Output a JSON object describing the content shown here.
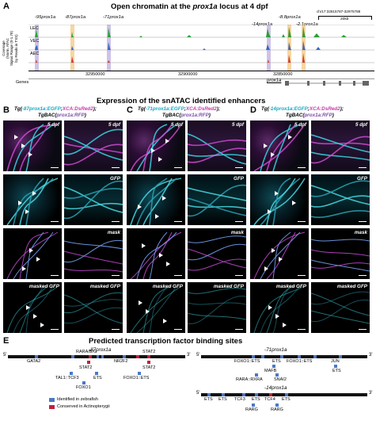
{
  "panel_a": {
    "letter": "A",
    "title_prefix": "Open chromatin at the ",
    "title_gene": "prox1a",
    "title_suffix": " locus at 4 dpf",
    "y_axis_label_1": "Coverage",
    "y_axis_label_2": "(Norm. ATAC",
    "y_axis_label_3": "Signal Range (0-1.78)",
    "y_axis_label_4": "by Reads in TSS)",
    "tracks": [
      "LEC",
      "VEC",
      "AEC"
    ],
    "region": "chr17:32815787-32975788",
    "scalebar": "20kb",
    "peaks": [
      "-95prox1a",
      "-87prox1a",
      "-71prox1a",
      "-14prox1a",
      "-8.8prox1a",
      "-2.1prox1a"
    ],
    "axis_ticks": [
      "32950000",
      "32900000",
      "32850000"
    ],
    "genes_label": "Genes",
    "gene_name": "prox1a"
  },
  "section_bd_title": "Expression of the snATAC identified enhancers",
  "panels_bd": [
    {
      "letter": "B",
      "tg1_a": "Tg(",
      "tg1_b": "-87prox1a:EGFP",
      "tg1_c": ";",
      "tg1_d": "XCA:DsRed2",
      "tg1_e": ");",
      "tg2_a": "TgBAC(",
      "tg2_b": "prox1a:RFP",
      "tg2_c": ")"
    },
    {
      "letter": "C",
      "tg1_a": "Tg(",
      "tg1_b": "-71prox1a:EGFP",
      "tg1_c": ";",
      "tg1_d": "XCA:DsRed2",
      "tg1_e": ");",
      "tg2_a": "TgBAC(",
      "tg2_b": "prox1a:RFP",
      "tg2_c": ")"
    },
    {
      "letter": "D",
      "tg1_a": "Tg(",
      "tg1_b": "-14prox1a:EGFP",
      "tg1_c": ";",
      "tg1_d": "XCA:DsRed2",
      "tg1_e": ");",
      "tg2_a": "TgBAC(",
      "tg2_b": "prox1a:RFP",
      "tg2_c": ")"
    }
  ],
  "row_labels": [
    "5 dpf",
    "GFP",
    "mask",
    "masked GFP"
  ],
  "panel_e": {
    "letter": "E",
    "title": "Predicted transcription factor binding sites",
    "enh87": {
      "name": "-87prox1a",
      "five": "5'",
      "three": "3'",
      "above": [
        "GATA2",
        "RARA/B/G",
        "NR2F2",
        "STAT2"
      ],
      "below": [
        "STAT2",
        "STAT2",
        "TAL1::TCF3",
        "ETS",
        "FOXO1::ETS",
        "FOXO1"
      ]
    },
    "enh71": {
      "name": "-71prox1a",
      "five": "5'",
      "three": "3'",
      "above": [
        "FOXO1::ETS",
        "ETS",
        "FOXO1::ETS",
        "JUN"
      ],
      "below": [
        "MAFB",
        "ETS",
        "RARA::RXRA",
        "SNAI2"
      ]
    },
    "enh14": {
      "name": "-14prox1a",
      "five": "5'",
      "three": "3'",
      "above": [
        "ETS",
        "ETS",
        "TCF3",
        "ETS",
        "TCF4",
        "ETS"
      ],
      "below": [
        "RARG",
        "RARG"
      ]
    },
    "legend": [
      "Identified in zebrafish",
      "Conserved in Actinopterygii"
    ],
    "colors": {
      "zebrafish": "#4a78c7",
      "conserved": "#c2203f"
    }
  }
}
